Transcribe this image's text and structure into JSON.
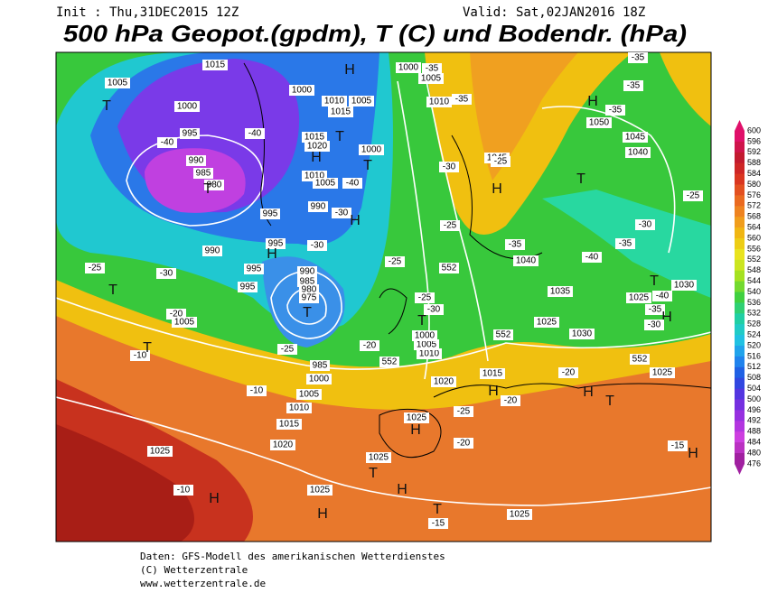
{
  "header": {
    "init": "Init : Thu,31DEC2015 12Z",
    "valid": "Valid: Sat,02JAN2016 18Z",
    "title": "500 hPa Geopot.(gpdm), T (C) und Bodendr. (hPa)"
  },
  "map_labels": [
    "1015",
    "1005",
    "1000",
    "995",
    "990",
    "985",
    "980",
    "T",
    "T",
    "-40",
    "-40",
    "H",
    "1000",
    "1010",
    "1005",
    "1015",
    "1015",
    "1020",
    "H",
    "T",
    "1000",
    "T",
    "1010",
    "1005",
    "-40",
    "990",
    "-30",
    "H",
    "995",
    "990",
    "-30",
    "995",
    "H",
    "995",
    "995",
    "-25",
    "-30",
    "T",
    "990",
    "985",
    "980",
    "975",
    "T",
    "-20",
    "1005",
    "-10",
    "T",
    "-25",
    "985",
    "1000",
    "-10",
    "1005",
    "1010",
    "1015",
    "1020",
    "1025",
    "-10",
    "H",
    "1025",
    "H",
    "T",
    "1025",
    "H",
    "T",
    "-15",
    "1025",
    "1025",
    "H",
    "-25",
    "-20",
    "1020",
    "1015",
    "H",
    "-20",
    "552",
    "-20",
    "1010",
    "1005",
    "1000",
    "T",
    "552",
    "-25",
    "-25",
    "-30",
    "552",
    "-25",
    "-30",
    "1000",
    "-35",
    "1005",
    "1010",
    "-35",
    "1045",
    "-25",
    "H",
    "-35",
    "-35",
    "H",
    "-35",
    "1050",
    "1045",
    "1040",
    "T",
    "-25",
    "-30",
    "-35",
    "-35",
    "1040",
    "-40",
    "1035",
    "1025",
    "T",
    "1030",
    "-40",
    "-35",
    "H",
    "-30",
    "1025",
    "1030",
    "552",
    "-20",
    "1025",
    "H",
    "T",
    "-15",
    "H"
  ],
  "colorbar": {
    "labels": [
      600,
      596,
      592,
      588,
      584,
      580,
      576,
      572,
      568,
      564,
      560,
      556,
      552,
      548,
      544,
      540,
      536,
      532,
      528,
      524,
      520,
      516,
      512,
      508,
      504,
      500,
      496,
      492,
      488,
      484,
      480,
      476
    ]
  },
  "footer": {
    "source": "Daten: GFS-Modell des amerikanischen Wetterdienstes",
    "copyright": "(C) Wetterzentrale",
    "url": "www.wetterzentrale.de"
  }
}
